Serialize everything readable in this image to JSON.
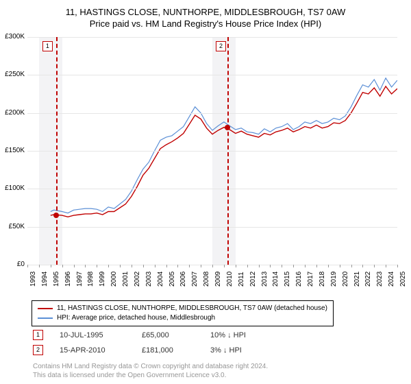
{
  "title1": "11, HASTINGS CLOSE, NUNTHORPE, MIDDLESBROUGH, TS7 0AW",
  "title2": "Price paid vs. HM Land Registry's House Price Index (HPI)",
  "chart": {
    "type": "line",
    "xmin": 1993,
    "xmax": 2025,
    "ymin": 0,
    "ymax": 300,
    "ylabels": [
      "£0",
      "£50K",
      "£100K",
      "£150K",
      "£200K",
      "£250K",
      "£300K"
    ],
    "xlabels": [
      "1993",
      "1994",
      "1995",
      "1996",
      "1997",
      "1998",
      "1999",
      "2000",
      "2001",
      "2002",
      "2003",
      "2004",
      "2005",
      "2006",
      "2007",
      "2008",
      "2009",
      "2010",
      "2011",
      "2012",
      "2013",
      "2014",
      "2015",
      "2016",
      "2017",
      "2018",
      "2019",
      "2020",
      "2021",
      "2022",
      "2023",
      "2024",
      "2025"
    ],
    "grid_color": "#e6e6e6",
    "bg": "#ffffff",
    "shade_color": "#f3f3f5",
    "shade_ranges": [
      [
        1994,
        1996
      ],
      [
        2009,
        2011
      ]
    ],
    "series": [
      {
        "name": "red",
        "color": "#c00000",
        "width": 1.4,
        "pts": [
          [
            1995,
            65
          ],
          [
            1995.3,
            66
          ],
          [
            1996,
            65
          ],
          [
            1996.5,
            63
          ],
          [
            1997,
            65
          ],
          [
            1997.5,
            66
          ],
          [
            1998,
            67
          ],
          [
            1998.5,
            67
          ],
          [
            1999,
            68
          ],
          [
            1999.5,
            66
          ],
          [
            2000,
            70
          ],
          [
            2000.5,
            70
          ],
          [
            2001,
            75
          ],
          [
            2001.5,
            80
          ],
          [
            2002,
            90
          ],
          [
            2002.5,
            103
          ],
          [
            2003,
            118
          ],
          [
            2003.5,
            127
          ],
          [
            2004,
            140
          ],
          [
            2004.5,
            153
          ],
          [
            2005,
            158
          ],
          [
            2005.5,
            162
          ],
          [
            2006,
            167
          ],
          [
            2006.5,
            173
          ],
          [
            2007,
            185
          ],
          [
            2007.5,
            197
          ],
          [
            2008,
            192
          ],
          [
            2008.5,
            180
          ],
          [
            2009,
            172
          ],
          [
            2009.5,
            177
          ],
          [
            2010,
            181
          ],
          [
            2010.5,
            178
          ],
          [
            2011,
            173
          ],
          [
            2011.5,
            176
          ],
          [
            2012,
            172
          ],
          [
            2012.5,
            170
          ],
          [
            2013,
            168
          ],
          [
            2013.5,
            173
          ],
          [
            2014,
            171
          ],
          [
            2014.5,
            175
          ],
          [
            2015,
            177
          ],
          [
            2015.5,
            180
          ],
          [
            2016,
            175
          ],
          [
            2016.5,
            178
          ],
          [
            2017,
            182
          ],
          [
            2017.5,
            180
          ],
          [
            2018,
            184
          ],
          [
            2018.5,
            180
          ],
          [
            2019,
            182
          ],
          [
            2019.5,
            187
          ],
          [
            2020,
            186
          ],
          [
            2020.5,
            190
          ],
          [
            2021,
            200
          ],
          [
            2021.5,
            213
          ],
          [
            2022,
            227
          ],
          [
            2022.5,
            225
          ],
          [
            2023,
            233
          ],
          [
            2023.5,
            222
          ],
          [
            2024,
            235
          ],
          [
            2024.5,
            225
          ],
          [
            2025,
            232
          ]
        ]
      },
      {
        "name": "blue",
        "color": "#5b8fd6",
        "width": 1.2,
        "pts": [
          [
            1995,
            70
          ],
          [
            1995.3,
            72
          ],
          [
            1996,
            70
          ],
          [
            1996.5,
            68
          ],
          [
            1997,
            72
          ],
          [
            1997.5,
            73
          ],
          [
            1998,
            74
          ],
          [
            1998.5,
            74
          ],
          [
            1999,
            73
          ],
          [
            1999.5,
            70
          ],
          [
            2000,
            76
          ],
          [
            2000.5,
            74
          ],
          [
            2001,
            80
          ],
          [
            2001.5,
            86
          ],
          [
            2002,
            97
          ],
          [
            2002.5,
            112
          ],
          [
            2003,
            126
          ],
          [
            2003.5,
            135
          ],
          [
            2004,
            150
          ],
          [
            2004.5,
            164
          ],
          [
            2005,
            168
          ],
          [
            2005.5,
            170
          ],
          [
            2006,
            176
          ],
          [
            2006.5,
            182
          ],
          [
            2007,
            195
          ],
          [
            2007.5,
            208
          ],
          [
            2008,
            200
          ],
          [
            2008.5,
            186
          ],
          [
            2009,
            177
          ],
          [
            2009.5,
            183
          ],
          [
            2010,
            188
          ],
          [
            2010.5,
            183
          ],
          [
            2011,
            178
          ],
          [
            2011.5,
            180
          ],
          [
            2012,
            175
          ],
          [
            2012.5,
            174
          ],
          [
            2013,
            172
          ],
          [
            2013.5,
            179
          ],
          [
            2014,
            175
          ],
          [
            2014.5,
            180
          ],
          [
            2015,
            182
          ],
          [
            2015.5,
            186
          ],
          [
            2016,
            178
          ],
          [
            2016.5,
            182
          ],
          [
            2017,
            188
          ],
          [
            2017.5,
            186
          ],
          [
            2018,
            190
          ],
          [
            2018.5,
            186
          ],
          [
            2019,
            188
          ],
          [
            2019.5,
            193
          ],
          [
            2020,
            191
          ],
          [
            2020.5,
            196
          ],
          [
            2021,
            208
          ],
          [
            2021.5,
            223
          ],
          [
            2022,
            237
          ],
          [
            2022.5,
            234
          ],
          [
            2023,
            244
          ],
          [
            2023.5,
            230
          ],
          [
            2024,
            246
          ],
          [
            2024.5,
            234
          ],
          [
            2025,
            243
          ]
        ]
      }
    ],
    "markers": [
      {
        "n": "1",
        "year": 1995.5,
        "label_x": 1994.3,
        "dot_year": 1995.5,
        "price": 65
      },
      {
        "n": "2",
        "year": 2010.3,
        "label_x": 2009.3,
        "dot_year": 2010.3,
        "price": 181
      }
    ],
    "vline_color": "#c00000",
    "dot_color": "#c00000",
    "axis_fontsize": 10,
    "title_fontsize": 13
  },
  "legend": {
    "red_label": "11, HASTINGS CLOSE, NUNTHORPE, MIDDLESBROUGH, TS7 0AW (detached house)",
    "blue_label": "HPI: Average price, detached house, Middlesbrough",
    "red_color": "#c00000",
    "blue_color": "#5b8fd6"
  },
  "sales": [
    {
      "n": "1",
      "date": "10-JUL-1995",
      "price": "£65,000",
      "pct": "10% ↓ HPI"
    },
    {
      "n": "2",
      "date": "15-APR-2010",
      "price": "£181,000",
      "pct": "3% ↓ HPI"
    }
  ],
  "license1": "Contains HM Land Registry data © Crown copyright and database right 2024.",
  "license2": "This data is licensed under the Open Government Licence v3.0."
}
